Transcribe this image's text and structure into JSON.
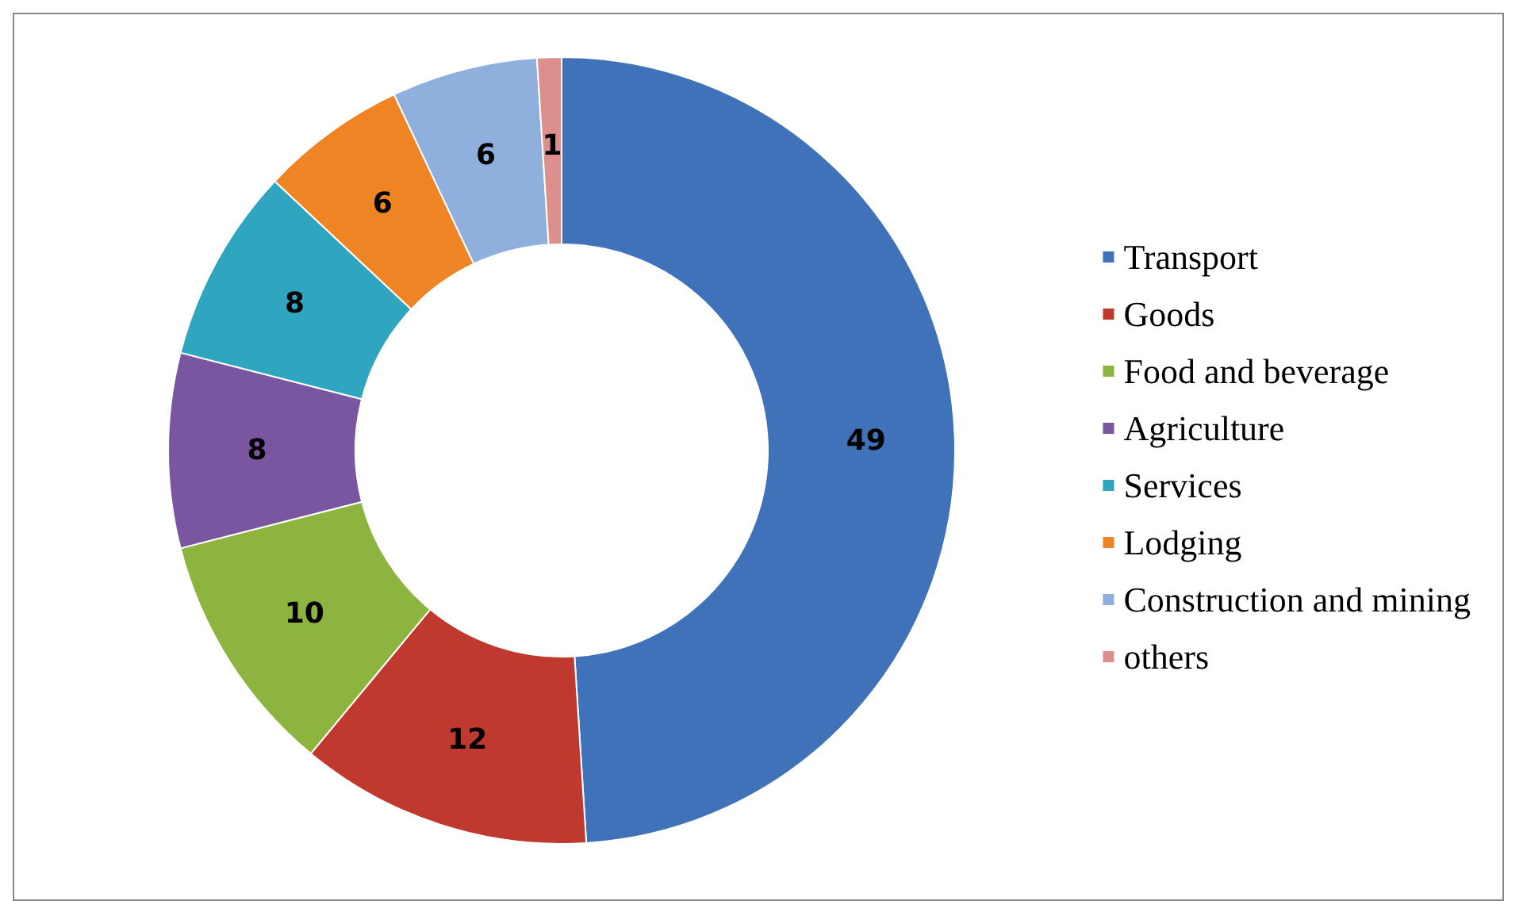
{
  "chart_data": {
    "type": "donut",
    "categories": [
      "Transport",
      "Goods",
      "Food and beverage",
      "Agriculture",
      "Services",
      "Lodging",
      "Construction and mining",
      "others"
    ],
    "values": [
      49,
      12,
      10,
      8,
      8,
      6,
      6,
      1
    ],
    "colors": [
      "#3f72b9",
      "#c0392f",
      "#8db43e",
      "#7a55a0",
      "#2fa5c0",
      "#ef8424",
      "#8fb0dc",
      "#dc8f8c"
    ],
    "data_labels": true,
    "legend": "right"
  }
}
